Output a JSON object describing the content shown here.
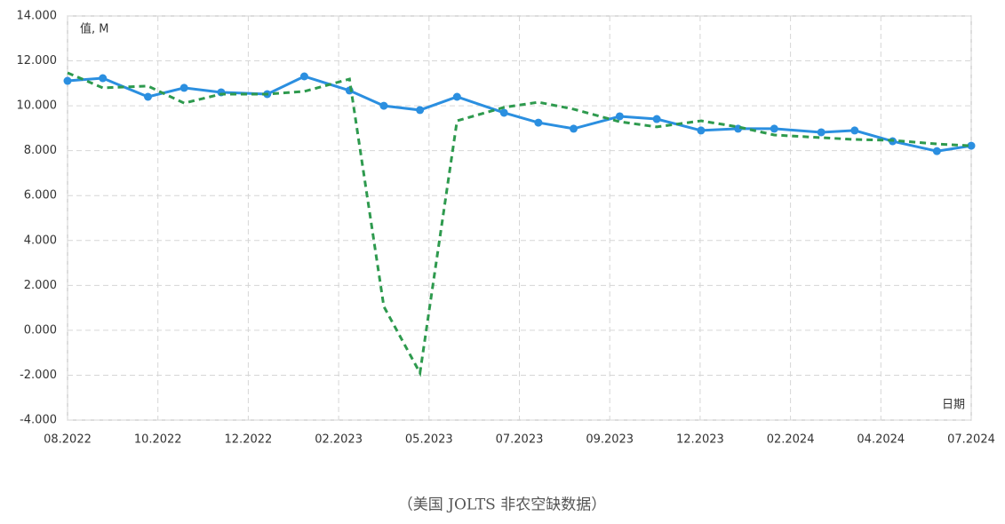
{
  "chart_data": {
    "type": "line",
    "y_label": "值, M",
    "x_label": "日期",
    "caption": "（美国 JOLTS 非农空缺数据）",
    "xlim": [
      0,
      10
    ],
    "ylim": [
      -4000,
      14000
    ],
    "grid": true,
    "xticks": [
      {
        "value": 0,
        "label": "08.2022"
      },
      {
        "value": 1,
        "label": "10.2022"
      },
      {
        "value": 2,
        "label": "12.2022"
      },
      {
        "value": 3,
        "label": "02.2023"
      },
      {
        "value": 4,
        "label": "05.2023"
      },
      {
        "value": 5,
        "label": "07.2023"
      },
      {
        "value": 6,
        "label": "09.2023"
      },
      {
        "value": 7,
        "label": "12.2023"
      },
      {
        "value": 8,
        "label": "02.2024"
      },
      {
        "value": 9,
        "label": "04.2024"
      },
      {
        "value": 10,
        "label": "07.2024"
      }
    ],
    "yticks": [
      {
        "value": -4000,
        "label": "-4.000"
      },
      {
        "value": -2000,
        "label": "-2.000"
      },
      {
        "value": 0,
        "label": "0.000"
      },
      {
        "value": 2000,
        "label": "2.000"
      },
      {
        "value": 4000,
        "label": "4.000"
      },
      {
        "value": 6000,
        "label": "6.000"
      },
      {
        "value": 8000,
        "label": "8.000"
      },
      {
        "value": 10000,
        "label": "10.000"
      },
      {
        "value": 12000,
        "label": "12.000"
      },
      {
        "value": 14000,
        "label": "14.000"
      }
    ],
    "x": [
      0,
      0.39,
      0.89,
      1.29,
      1.7,
      2.21,
      2.62,
      3.12,
      3.5,
      3.9,
      4.31,
      4.83,
      5.21,
      5.6,
      6.11,
      6.52,
      7.01,
      7.42,
      7.82,
      8.34,
      8.71,
      9.13,
      9.62,
      10
    ],
    "series": [
      {
        "color": "#2b8fe0",
        "style": "solid",
        "markers": true,
        "values": [
          11110,
          11230,
          10400,
          10800,
          10600,
          10520,
          11310,
          10680,
          10000,
          9810,
          10400,
          9690,
          9250,
          8980,
          9530,
          9410,
          8900,
          8980,
          8980,
          8820,
          8900,
          8420,
          7980,
          8220
        ]
      },
      {
        "color": "#2e9a4e",
        "style": "dashed",
        "markers": false,
        "values": [
          11470,
          10800,
          10880,
          10120,
          10520,
          10520,
          10640,
          11190,
          1060,
          -1900,
          9330,
          9930,
          10160,
          9850,
          9290,
          9060,
          9330,
          9060,
          8700,
          8580,
          8500,
          8460,
          8300,
          8220
        ]
      }
    ]
  }
}
